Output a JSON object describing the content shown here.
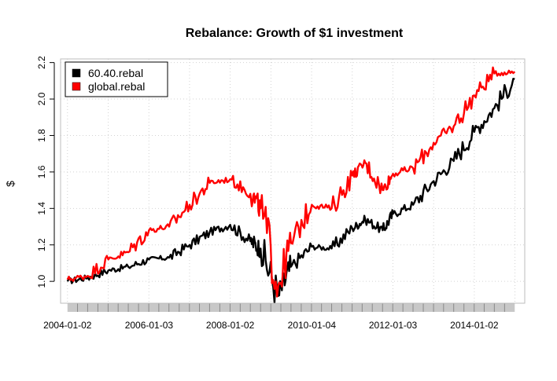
{
  "chart_data": {
    "type": "line",
    "title": "Rebalance: Growth of $1 investment",
    "xlabel": "",
    "ylabel": "$",
    "x_tick_labels": [
      "2004-01-02",
      "2006-01-03",
      "2008-01-02",
      "2010-01-04",
      "2012-01-03",
      "2014-01-02"
    ],
    "y_ticks": [
      1.0,
      1.2,
      1.4,
      1.6,
      1.8,
      2.0,
      2.2
    ],
    "y_tick_labels": [
      "1.0",
      "1.2",
      "1.4",
      "1.6",
      "1.8",
      "2.0",
      "2.2"
    ],
    "xlim": [
      "2003-11-01",
      "2015-03-31"
    ],
    "ylim": [
      0.88,
      2.22
    ],
    "grid": true,
    "legend_position": "top-left",
    "x": [
      "2004-01-02",
      "2004-07-01",
      "2005-01-03",
      "2005-07-01",
      "2006-01-03",
      "2006-07-03",
      "2007-01-03",
      "2007-07-02",
      "2008-01-02",
      "2008-07-01",
      "2008-10-01",
      "2009-03-09",
      "2009-07-01",
      "2010-01-04",
      "2010-07-01",
      "2011-01-03",
      "2011-04-29",
      "2011-10-03",
      "2012-01-03",
      "2012-07-02",
      "2013-01-02",
      "2013-07-01",
      "2014-01-02",
      "2014-07-01",
      "2014-12-31"
    ],
    "series": [
      {
        "name": "60.40.rebal",
        "color": "#000000",
        "values": [
          1.0,
          1.02,
          1.06,
          1.08,
          1.12,
          1.13,
          1.2,
          1.27,
          1.31,
          1.22,
          1.18,
          0.92,
          1.08,
          1.19,
          1.18,
          1.29,
          1.34,
          1.28,
          1.37,
          1.42,
          1.55,
          1.66,
          1.82,
          1.95,
          2.11
        ]
      },
      {
        "name": "global.rebal",
        "color": "#ff0000",
        "values": [
          1.01,
          1.03,
          1.12,
          1.16,
          1.28,
          1.3,
          1.42,
          1.54,
          1.56,
          1.48,
          1.4,
          0.98,
          1.21,
          1.42,
          1.4,
          1.58,
          1.65,
          1.5,
          1.59,
          1.62,
          1.76,
          1.85,
          2.02,
          2.14,
          2.15
        ]
      }
    ]
  }
}
